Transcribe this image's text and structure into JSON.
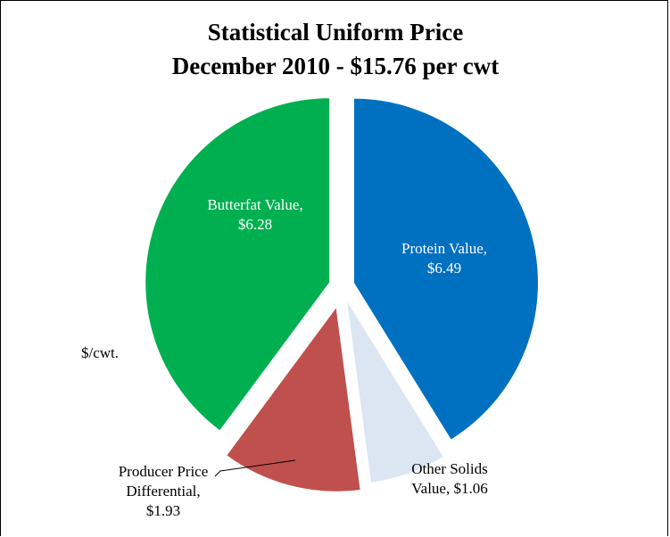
{
  "chart_data": {
    "type": "pie",
    "title": "Statistical Uniform Price",
    "subtitle": "December 2010 - $15.76 per cwt",
    "unit_label": "$/cwt.",
    "slices": [
      {
        "label_lines": [
          "Protein Value,",
          "$6.49"
        ],
        "value": 6.49,
        "color": "#0070C0",
        "label_color": "#ffffff"
      },
      {
        "label_lines": [
          "Other Solids",
          "Value, $1.06"
        ],
        "value": 1.06,
        "color": "#DCE6F2",
        "label_color": "#000000"
      },
      {
        "label_lines": [
          "Producer Price",
          "Differential,",
          "$1.93"
        ],
        "value": 1.93,
        "color": "#C0504D",
        "label_color": "#000000"
      },
      {
        "label_lines": [
          "Butterfat Value,",
          "$6.28"
        ],
        "value": 6.28,
        "color": "#00B050",
        "label_color": "#ffffff"
      }
    ]
  }
}
